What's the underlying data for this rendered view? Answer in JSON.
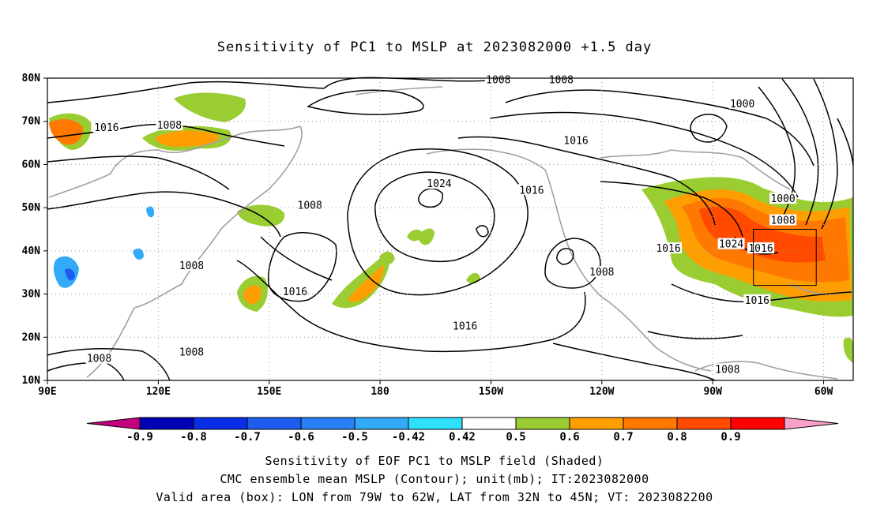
{
  "title": "Sensitivity of PC1 to MSLP at 2023082000 +1.5 day",
  "captions": [
    "Sensitivity of EOF PC1 to MSLP field (Shaded)",
    "CMC ensemble mean MSLP (Contour); unit(mb); IT:2023082000",
    "Valid area (box): LON from 79W to 62W, LAT from 32N to 45N; VT: 2023082200"
  ],
  "axes": {
    "lat_ticks": [
      "80N",
      "70N",
      "60N",
      "50N",
      "40N",
      "30N",
      "20N",
      "10N"
    ],
    "lon_ticks": [
      "90E",
      "120E",
      "150E",
      "180",
      "150W",
      "120W",
      "90W",
      "60W"
    ],
    "lon_range_deg_east": [
      90,
      308
    ],
    "lat_range": [
      10,
      80
    ],
    "grid": "dotted"
  },
  "contour_labels": [
    {
      "text": "1008",
      "lon": 212,
      "lat": 79.5
    },
    {
      "text": "1008",
      "lon": 229,
      "lat": 79.5
    },
    {
      "text": "1000",
      "lon": 278,
      "lat": 74
    },
    {
      "text": "1016",
      "lon": 106,
      "lat": 68.5
    },
    {
      "text": "1008",
      "lon": 123,
      "lat": 69
    },
    {
      "text": "1016",
      "lon": 233,
      "lat": 65.5
    },
    {
      "text": "1024",
      "lon": 196,
      "lat": 55.5
    },
    {
      "text": "1016",
      "lon": 221,
      "lat": 54
    },
    {
      "text": "1000",
      "lon": 289,
      "lat": 52
    },
    {
      "text": "1008",
      "lon": 161,
      "lat": 50.5
    },
    {
      "text": "1008",
      "lon": 289,
      "lat": 47
    },
    {
      "text": "1024",
      "lon": 275,
      "lat": 41.5
    },
    {
      "text": "1016",
      "lon": 283,
      "lat": 40.5
    },
    {
      "text": "1016",
      "lon": 258,
      "lat": 40.5
    },
    {
      "text": "1008",
      "lon": 129,
      "lat": 36.5
    },
    {
      "text": "1008",
      "lon": 240,
      "lat": 35
    },
    {
      "text": "1016",
      "lon": 157,
      "lat": 30.5
    },
    {
      "text": "1016",
      "lon": 282,
      "lat": 28.5
    },
    {
      "text": "1016",
      "lon": 203,
      "lat": 22.5
    },
    {
      "text": "1008",
      "lon": 129,
      "lat": 16.5
    },
    {
      "text": "1008",
      "lon": 104,
      "lat": 15
    },
    {
      "text": "1008",
      "lon": 274,
      "lat": 12.5
    }
  ],
  "valid_box": {
    "lon_west": -79,
    "lon_east": -62,
    "lat_south": 32,
    "lat_north": 45
  },
  "colorbar": {
    "labels": [
      "-0.9",
      "-0.8",
      "-0.7",
      "-0.6",
      "-0.5",
      "-0.42",
      "0.42",
      "0.5",
      "0.6",
      "0.7",
      "0.8",
      "0.9"
    ],
    "colors": [
      "#c4007f",
      "#0000b4",
      "#0a2de6",
      "#1e5cf0",
      "#2a7ff8",
      "#32aaf7",
      "#2ee0fa",
      "#ffffff",
      "#9acd32",
      "#ff9e00",
      "#ff7800",
      "#ff4a00",
      "#ff0000",
      "#f9a0c8"
    ]
  }
}
